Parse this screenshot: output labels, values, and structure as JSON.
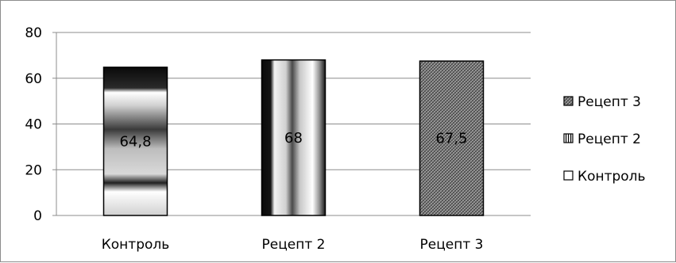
{
  "chart_data": {
    "type": "bar",
    "categories": [
      "Контроль",
      "Рецепт 2",
      "Рецепт 3"
    ],
    "values": [
      64.8,
      68,
      67.5
    ],
    "data_labels": [
      "64,8",
      "68",
      "67,5"
    ],
    "ylim": [
      0,
      80
    ],
    "yticks": [
      "0",
      "20",
      "40",
      "60",
      "80"
    ],
    "grid": true,
    "legend_position": "right",
    "legend": [
      "Рецепт 3",
      "Рецепт 2",
      "Контроль"
    ]
  }
}
